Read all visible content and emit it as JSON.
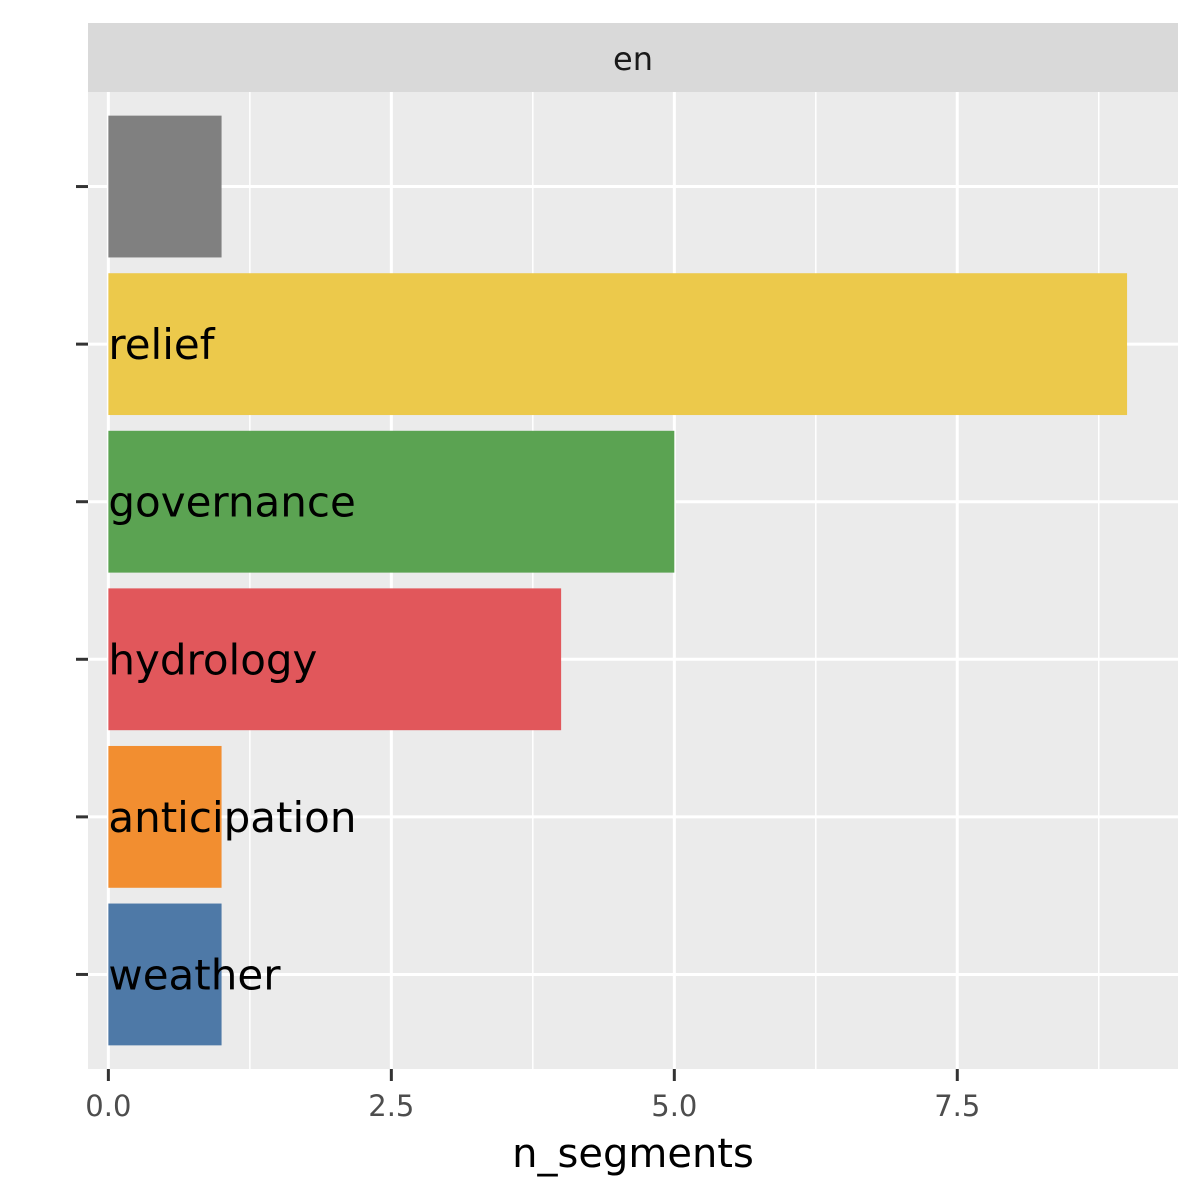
{
  "chart_data": {
    "type": "bar",
    "orientation": "horizontal",
    "facet_label": "en",
    "xlabel": "n_segments",
    "ylabel": "",
    "xlim": [
      -0.18,
      9.45
    ],
    "x_ticks": [
      0,
      2.5,
      5,
      7.5
    ],
    "x_tick_labels": [
      "0.0",
      "2.5",
      "5.0",
      "7.5"
    ],
    "x_minor_ticks": [
      1.25,
      3.75,
      6.25,
      8.75
    ],
    "grid": true,
    "legend": "none",
    "categories": [
      "",
      "relief",
      "governance",
      "hydrology",
      "anticipation",
      "weather"
    ],
    "values": [
      1,
      9,
      5,
      4,
      1,
      1
    ],
    "colors": [
      "#808080",
      "#ECC94B",
      "#5BA352",
      "#E1575B",
      "#F28E30",
      "#4E79A7"
    ]
  }
}
